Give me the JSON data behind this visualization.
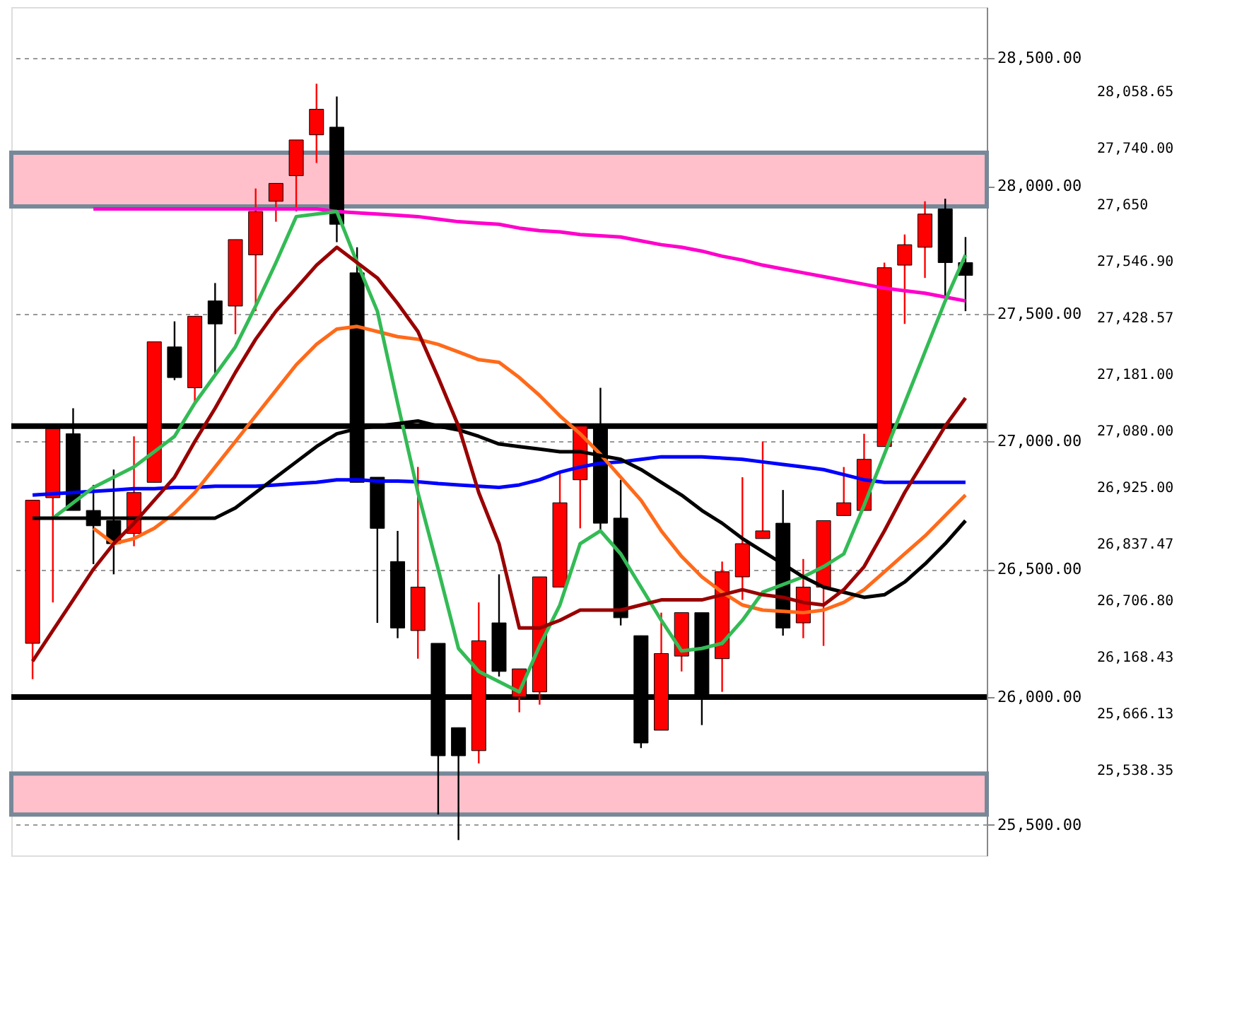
{
  "chart_data": {
    "type": "candlestick",
    "categories": [
      null,
      null,
      null,
      null,
      null,
      null,
      null,
      null,
      null,
      null,
      null,
      null,
      null,
      null,
      null,
      null,
      null,
      null,
      null,
      null,
      null,
      null,
      null,
      null,
      null,
      null,
      null,
      null,
      null,
      null,
      null,
      null,
      null,
      null,
      null,
      null,
      null,
      null,
      null,
      null,
      null,
      null,
      null,
      null,
      null,
      null,
      null
    ],
    "ohlc": [
      [
        26210,
        26770,
        26070,
        26770
      ],
      [
        26780,
        27050,
        26370,
        27050
      ],
      [
        27030,
        27130,
        26730,
        26730
      ],
      [
        26730,
        26830,
        26520,
        26670
      ],
      [
        26690,
        26890,
        26480,
        26600
      ],
      [
        26640,
        27020,
        26590,
        26800
      ],
      [
        26840,
        27390,
        26840,
        27390
      ],
      [
        27370,
        27470,
        27240,
        27250
      ],
      [
        27210,
        27490,
        27150,
        27490
      ],
      [
        27550,
        27620,
        27260,
        27460
      ],
      [
        27530,
        27790,
        27420,
        27790
      ],
      [
        27730,
        27990,
        27510,
        27900
      ],
      [
        27940,
        28010,
        27860,
        28010
      ],
      [
        28040,
        28180,
        27900,
        28180
      ],
      [
        28200,
        28400,
        28090,
        28300
      ],
      [
        28230,
        28350,
        27780,
        27850
      ],
      [
        27660,
        27760,
        26840,
        26840
      ],
      [
        26860,
        26860,
        26290,
        26660
      ],
      [
        26530,
        26650,
        26230,
        26270
      ],
      [
        26260,
        26900,
        26150,
        26430
      ],
      [
        26210,
        26210,
        25540,
        25770
      ],
      [
        25880,
        25880,
        25440,
        25770
      ],
      [
        25790,
        26370,
        25740,
        26220
      ],
      [
        26290,
        26480,
        26080,
        26100
      ],
      [
        26000,
        26110,
        25940,
        26110
      ],
      [
        26020,
        26470,
        25970,
        26470
      ],
      [
        26430,
        26880,
        26430,
        26760
      ],
      [
        26850,
        27060,
        26660,
        27060
      ],
      [
        27060,
        27210,
        26650,
        26680
      ],
      [
        26700,
        26850,
        26280,
        26310
      ],
      [
        26240,
        26240,
        25800,
        25820
      ],
      [
        25870,
        26330,
        25870,
        26170
      ],
      [
        26160,
        26330,
        26100,
        26330
      ],
      [
        26330,
        26330,
        25890,
        26000
      ],
      [
        26150,
        26530,
        26020,
        26490
      ],
      [
        26470,
        26860,
        26380,
        26600
      ],
      [
        26620,
        27000,
        26620,
        26650
      ],
      [
        26680,
        26810,
        26240,
        26270
      ],
      [
        26290,
        26540,
        26230,
        26430
      ],
      [
        26430,
        26690,
        26200,
        26690
      ],
      [
        26710,
        26900,
        26710,
        26760
      ],
      [
        26730,
        27030,
        26730,
        26930
      ],
      [
        26980,
        27700,
        26980,
        27680
      ],
      [
        27690,
        27810,
        27460,
        27770
      ],
      [
        27760,
        27940,
        27640,
        27890
      ],
      [
        27910,
        27950,
        27550,
        27700
      ],
      [
        27700,
        27800,
        27510,
        27650
      ]
    ],
    "colors": [
      "#ff0000",
      "#ff0000",
      "#000000",
      "#000000",
      "#000000",
      "#ff0000",
      "#ff0000",
      "#000000",
      "#ff0000",
      "#000000",
      "#ff0000",
      "#ff0000",
      "#ff0000",
      "#ff0000",
      "#ff0000",
      "#000000",
      "#000000",
      "#000000",
      "#000000",
      "#ff0000",
      "#000000",
      "#000000",
      "#ff0000",
      "#000000",
      "#ff0000",
      "#ff0000",
      "#ff0000",
      "#ff0000",
      "#000000",
      "#000000",
      "#000000",
      "#ff0000",
      "#ff0000",
      "#000000",
      "#ff0000",
      "#ff0000",
      "#ff0000",
      "#000000",
      "#ff0000",
      "#ff0000",
      "#ff0000",
      "#ff0000",
      "#ff0000",
      "#ff0000",
      "#ff0000",
      "#000000",
      "#000000"
    ],
    "series": [
      {
        "type": "line",
        "color": "#ff00cc",
        "values": [
          null,
          null,
          null,
          27910,
          27910,
          27910,
          27910,
          27910,
          27910,
          27910,
          27910,
          27910,
          27910,
          27910,
          27910,
          27900,
          27895,
          27890,
          27885,
          27880,
          27870,
          27860,
          27855,
          27850,
          27835,
          27825,
          27820,
          27810,
          27805,
          27800,
          27785,
          27770,
          27760,
          27745,
          27725,
          27710,
          27690,
          27675,
          27660,
          27645,
          27630,
          27615,
          27600,
          27590,
          27580,
          27565,
          27550
        ]
      },
      {
        "type": "line",
        "color": "#0000ff",
        "values": [
          26790,
          26795,
          26800,
          26805,
          26810,
          26815,
          26815,
          26820,
          26820,
          26825,
          26825,
          26825,
          26830,
          26835,
          26840,
          26850,
          26850,
          26845,
          26845,
          26842,
          26835,
          26830,
          26825,
          26820,
          26830,
          26850,
          26880,
          26900,
          26915,
          26920,
          26930,
          26940,
          26940,
          26940,
          26935,
          26930,
          26920,
          26910,
          26900,
          26890,
          26870,
          26850,
          26840,
          26840,
          26840,
          26840,
          26840
        ]
      },
      {
        "type": "line",
        "color": "#ff6a1a",
        "values": [
          null,
          null,
          null,
          26660,
          26600,
          26620,
          26660,
          26720,
          26800,
          26900,
          27000,
          27100,
          27200,
          27300,
          27380,
          27440,
          27450,
          27430,
          27410,
          27400,
          27380,
          27350,
          27320,
          27310,
          27250,
          27180,
          27100,
          27030,
          26950,
          26860,
          26770,
          26650,
          26550,
          26470,
          26410,
          26360,
          26340,
          26335,
          26330,
          26340,
          26370,
          26420,
          26490,
          26560,
          26630,
          26710,
          26790
        ]
      },
      {
        "type": "line",
        "color": "#33bb55",
        "values": [
          null,
          26700,
          26760,
          26820,
          26860,
          26900,
          26960,
          27020,
          27150,
          27260,
          27370,
          27530,
          27700,
          27880,
          27890,
          27900,
          27700,
          27510,
          27150,
          26800,
          26500,
          26190,
          26100,
          26060,
          26020,
          26200,
          26360,
          26600,
          26650,
          26560,
          26430,
          26300,
          26180,
          26190,
          26210,
          26300,
          26410,
          26440,
          26470,
          26510,
          26560,
          26750,
          26950,
          27150,
          27350,
          27550,
          27730
        ]
      },
      {
        "type": "line",
        "color": "#000000",
        "values": [
          26700,
          26700,
          26700,
          26700,
          26700,
          26700,
          26700,
          26700,
          26700,
          26700,
          26740,
          26800,
          26860,
          26920,
          26980,
          27030,
          27050,
          27060,
          27070,
          27080,
          27060,
          27045,
          27020,
          26990,
          26980,
          26970,
          26960,
          26960,
          26945,
          26930,
          26890,
          26840,
          26790,
          26730,
          26680,
          26620,
          26570,
          26520,
          26470,
          26430,
          26410,
          26390,
          26400,
          26450,
          26520,
          26600,
          26690
        ]
      },
      {
        "type": "line",
        "color": "#990000",
        "values": [
          26140,
          26260,
          26380,
          26500,
          26600,
          26680,
          26770,
          26860,
          27000,
          27130,
          27270,
          27400,
          27510,
          27600,
          27690,
          27760,
          27700,
          27640,
          27540,
          27430,
          27250,
          27060,
          26800,
          26600,
          26270,
          26270,
          26300,
          26340,
          26340,
          26340,
          26360,
          26380,
          26380,
          26380,
          26400,
          26420,
          26400,
          26390,
          26370,
          26360,
          26420,
          26510,
          26650,
          26800,
          26930,
          27060,
          27170
        ]
      }
    ],
    "ylim": [
      25380,
      28700
    ],
    "yticks": [
      {
        "value": 25500,
        "label": "25,500.00"
      },
      {
        "value": 26000,
        "label": "26,000.00"
      },
      {
        "value": 26500,
        "label": "26,500.00"
      },
      {
        "value": 27000,
        "label": "27,000.00"
      },
      {
        "value": 27500,
        "label": "27,500.00"
      },
      {
        "value": 28000,
        "label": "28,000.00"
      },
      {
        "value": 28500,
        "label": "28,500.00"
      }
    ],
    "tick_labels": "y",
    "grid": "y",
    "ref_lines": [
      {
        "axis": "y",
        "value": 26000,
        "color": "#000000"
      },
      {
        "axis": "y",
        "value": 27060,
        "color": "#000000"
      }
    ],
    "bands": [
      {
        "axis": "y",
        "from": 27920,
        "to": 28130,
        "color": "#ffc0cb"
      },
      {
        "axis": "y",
        "from": 25540,
        "to": 25700,
        "color": "#ffc0cb"
      }
    ],
    "annotations": [
      "28,058.65",
      "27,740.00",
      "27,650",
      "27,546.90",
      "27,428.57",
      "27,181.00",
      "27,080.00",
      "26,925.00",
      "26,837.47",
      "26,706.80",
      "26,168.43",
      "25,666.13",
      "25,538.35"
    ]
  }
}
